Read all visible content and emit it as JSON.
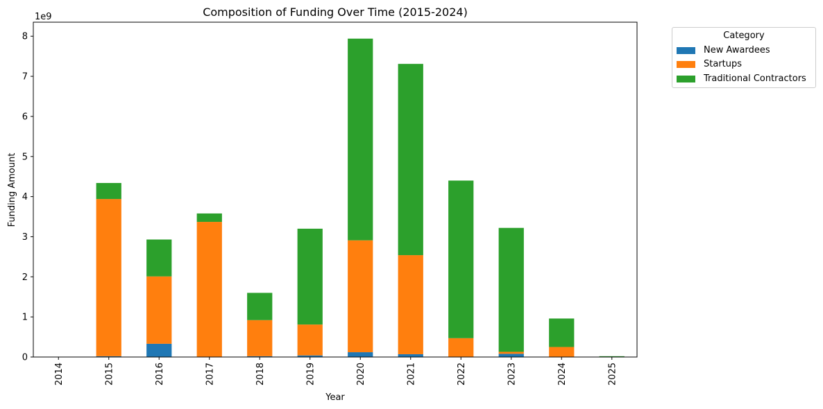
{
  "chart_data": {
    "type": "bar",
    "stacked": true,
    "title": "Composition of Funding Over Time (2015-2024)",
    "xlabel": "Year",
    "ylabel": "Funding Amount",
    "y_offset_label": "1e9",
    "ylim": [
      0,
      8.35
    ],
    "y_ticks": [
      0,
      1,
      2,
      3,
      4,
      5,
      6,
      7,
      8
    ],
    "y_tick_labels": [
      "0",
      "1",
      "2",
      "3",
      "4",
      "5",
      "6",
      "7",
      "8"
    ],
    "categories": [
      "2014",
      "2015",
      "2016",
      "2017",
      "2018",
      "2019",
      "2020",
      "2021",
      "2022",
      "2023",
      "2024",
      "2025"
    ],
    "series": [
      {
        "name": "New Awardees",
        "color": "#1f77b4",
        "values": [
          0,
          0.02,
          0.33,
          0,
          0.02,
          0.04,
          0.12,
          0.07,
          0,
          0.08,
          0,
          0
        ]
      },
      {
        "name": "Startups",
        "color": "#ff7f0e",
        "values": [
          0,
          3.92,
          1.68,
          3.37,
          0.9,
          0.77,
          2.79,
          2.47,
          0.47,
          0.05,
          0.25,
          0
        ]
      },
      {
        "name": "Traditional Contractors",
        "color": "#2ca02c",
        "values": [
          0,
          0.4,
          0.92,
          0.21,
          0.68,
          2.39,
          5.03,
          4.77,
          3.93,
          3.09,
          0.71,
          0.02
        ]
      }
    ],
    "grid": false,
    "legend_title": "Category",
    "legend_position": "outside-right-top"
  }
}
